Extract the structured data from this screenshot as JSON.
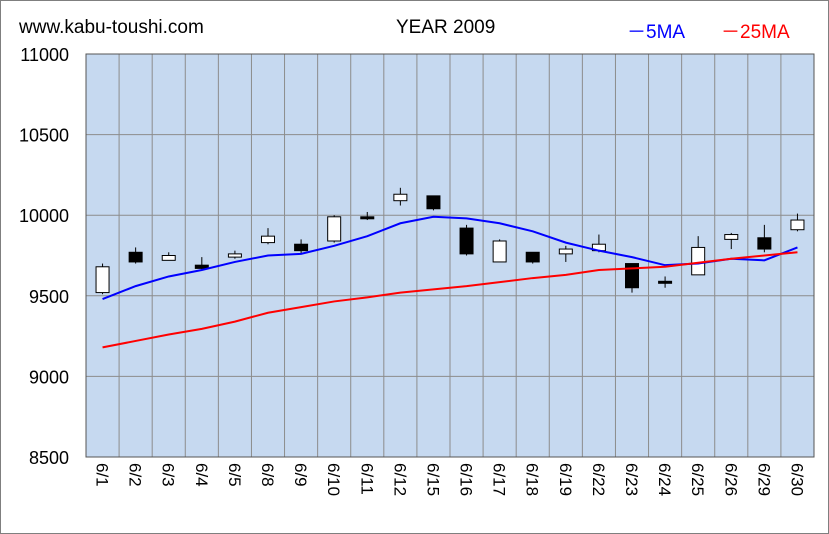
{
  "header": {
    "site": "www.kabu-toushi.com",
    "title": "YEAR 2009",
    "legend_5ma": "－5MA",
    "legend_25ma": "－25MA"
  },
  "colors": {
    "plot_bg": "#c6d9f0",
    "grid": "#8c8c8c",
    "ma5": "#0000ff",
    "ma25": "#ff0000",
    "up_candle": "#ffffff",
    "down_candle": "#000000"
  },
  "chart_data": {
    "type": "candlestick",
    "title": "YEAR 2009",
    "ylim": [
      8500,
      11000
    ],
    "yticks": [
      8500,
      9000,
      9500,
      10000,
      10500,
      11000
    ],
    "grid": true,
    "legend_position": "top-right",
    "categories": [
      "6/1",
      "6/2",
      "6/3",
      "6/4",
      "6/5",
      "6/8",
      "6/9",
      "6/10",
      "6/11",
      "6/12",
      "6/15",
      "6/16",
      "6/17",
      "6/18",
      "6/19",
      "6/22",
      "6/23",
      "6/24",
      "6/25",
      "6/26",
      "6/29",
      "6/30"
    ],
    "candles": [
      {
        "open": 9520,
        "high": 9700,
        "low": 9510,
        "close": 9680
      },
      {
        "open": 9770,
        "high": 9800,
        "low": 9700,
        "close": 9710
      },
      {
        "open": 9720,
        "high": 9770,
        "low": 9720,
        "close": 9750
      },
      {
        "open": 9690,
        "high": 9740,
        "low": 9660,
        "close": 9670
      },
      {
        "open": 9740,
        "high": 9780,
        "low": 9730,
        "close": 9760
      },
      {
        "open": 9830,
        "high": 9920,
        "low": 9820,
        "close": 9870
      },
      {
        "open": 9820,
        "high": 9850,
        "low": 9760,
        "close": 9780
      },
      {
        "open": 9840,
        "high": 10000,
        "low": 9830,
        "close": 9990
      },
      {
        "open": 9990,
        "high": 10020,
        "low": 9970,
        "close": 9980
      },
      {
        "open": 10090,
        "high": 10170,
        "low": 10060,
        "close": 10130
      },
      {
        "open": 10120,
        "high": 10120,
        "low": 10030,
        "close": 10040
      },
      {
        "open": 9920,
        "high": 9940,
        "low": 9750,
        "close": 9760
      },
      {
        "open": 9710,
        "high": 9850,
        "low": 9710,
        "close": 9840
      },
      {
        "open": 9770,
        "high": 9770,
        "low": 9700,
        "close": 9710
      },
      {
        "open": 9760,
        "high": 9810,
        "low": 9710,
        "close": 9790
      },
      {
        "open": 9780,
        "high": 9880,
        "low": 9770,
        "close": 9820
      },
      {
        "open": 9700,
        "high": 9700,
        "low": 9520,
        "close": 9550
      },
      {
        "open": 9590,
        "high": 9620,
        "low": 9550,
        "close": 9580
      },
      {
        "open": 9630,
        "high": 9870,
        "low": 9630,
        "close": 9800
      },
      {
        "open": 9850,
        "high": 9890,
        "low": 9790,
        "close": 9880
      },
      {
        "open": 9860,
        "high": 9940,
        "low": 9770,
        "close": 9790
      },
      {
        "open": 9910,
        "high": 10010,
        "low": 9900,
        "close": 9970
      }
    ],
    "series": [
      {
        "name": "5MA",
        "color": "#0000ff",
        "values": [
          9480,
          9560,
          9620,
          9660,
          9710,
          9750,
          9760,
          9810,
          9870,
          9950,
          9990,
          9980,
          9950,
          9900,
          9830,
          9780,
          9740,
          9690,
          9700,
          9730,
          9720,
          9800
        ]
      },
      {
        "name": "25MA",
        "color": "#ff0000",
        "values": [
          9180,
          9220,
          9260,
          9295,
          9340,
          9395,
          9430,
          9465,
          9490,
          9520,
          9540,
          9560,
          9585,
          9610,
          9630,
          9660,
          9670,
          9680,
          9705,
          9730,
          9750,
          9770
        ]
      }
    ]
  }
}
